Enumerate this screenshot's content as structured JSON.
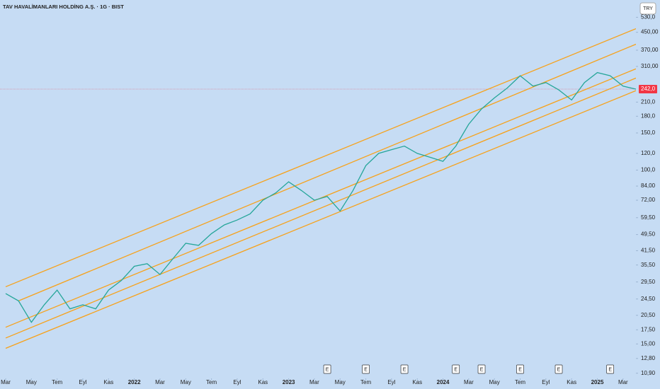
{
  "chart_data": {
    "type": "line",
    "title": "TAV HAVALİMANLARI HOLDİNG A.Ş. · 1G · BIST",
    "currency": "TRY",
    "log_scale": true,
    "x": [
      "2021-03",
      "2021-04",
      "2021-05",
      "2021-06",
      "2021-07",
      "2021-08",
      "2021-09",
      "2021-10",
      "2021-11",
      "2021-12",
      "2022-01",
      "2022-02",
      "2022-03",
      "2022-04",
      "2022-05",
      "2022-06",
      "2022-07",
      "2022-08",
      "2022-09",
      "2022-10",
      "2022-11",
      "2022-12",
      "2023-01",
      "2023-02",
      "2023-03",
      "2023-04",
      "2023-05",
      "2023-06",
      "2023-07",
      "2023-08",
      "2023-09",
      "2023-10",
      "2023-11",
      "2023-12",
      "2024-01",
      "2024-02",
      "2024-03",
      "2024-04",
      "2024-05",
      "2024-06",
      "2024-07",
      "2024-08",
      "2024-09",
      "2024-10",
      "2024-11",
      "2024-12",
      "2025-01",
      "2025-02",
      "2025-03",
      "2025-04"
    ],
    "series": [
      {
        "color": "#26a69a",
        "values": [
          26,
          24,
          19,
          23,
          27,
          22,
          23,
          22,
          27,
          30,
          35,
          36,
          32,
          38,
          45,
          44,
          50,
          55,
          58,
          62,
          72,
          78,
          88,
          80,
          72,
          75,
          64,
          80,
          105,
          120,
          125,
          130,
          120,
          115,
          110,
          130,
          165,
          195,
          220,
          245,
          280,
          250,
          260,
          240,
          215,
          260,
          290,
          280,
          250,
          242
        ]
      }
    ],
    "xlim": [
      "2021-03",
      "2025-04"
    ],
    "xticks": [
      {
        "value": "2021-03",
        "label": "Mar"
      },
      {
        "value": "2021-05",
        "label": "May"
      },
      {
        "value": "2021-07",
        "label": "Tem"
      },
      {
        "value": "2021-09",
        "label": "Eyl"
      },
      {
        "value": "2021-11",
        "label": "Kas"
      },
      {
        "value": "2022-01",
        "label": "2022"
      },
      {
        "value": "2022-03",
        "label": "Mar"
      },
      {
        "value": "2022-05",
        "label": "May"
      },
      {
        "value": "2022-07",
        "label": "Tem"
      },
      {
        "value": "2022-09",
        "label": "Eyl"
      },
      {
        "value": "2022-11",
        "label": "Kas"
      },
      {
        "value": "2023-01",
        "label": "2023"
      },
      {
        "value": "2023-03",
        "label": "Mar"
      },
      {
        "value": "2023-05",
        "label": "May"
      },
      {
        "value": "2023-07",
        "label": "Tem"
      },
      {
        "value": "2023-09",
        "label": "Eyl"
      },
      {
        "value": "2023-11",
        "label": "Kas"
      },
      {
        "value": "2024-01",
        "label": "2024"
      },
      {
        "value": "2024-03",
        "label": "Mar"
      },
      {
        "value": "2024-05",
        "label": "May"
      },
      {
        "value": "2024-07",
        "label": "Tem"
      },
      {
        "value": "2024-09",
        "label": "Eyl"
      },
      {
        "value": "2024-11",
        "label": "Kas"
      },
      {
        "value": "2025-01",
        "label": "2025"
      },
      {
        "value": "2025-03",
        "label": "Mar"
      }
    ],
    "ylim": [
      10.3,
      640
    ],
    "yticks": [
      {
        "value": 10.9,
        "label": "10,90"
      },
      {
        "value": 12.8,
        "label": "12,80"
      },
      {
        "value": 15,
        "label": "15,00"
      },
      {
        "value": 17.5,
        "label": "17,50"
      },
      {
        "value": 20.5,
        "label": "20,50"
      },
      {
        "value": 24.5,
        "label": "24,50"
      },
      {
        "value": 29.5,
        "label": "29,50"
      },
      {
        "value": 35.5,
        "label": "35,50"
      },
      {
        "value": 41.5,
        "label": "41,50"
      },
      {
        "value": 49.5,
        "label": "49,50"
      },
      {
        "value": 59.5,
        "label": "59,50"
      },
      {
        "value": 72,
        "label": "72,00"
      },
      {
        "value": 84,
        "label": "84,00"
      },
      {
        "value": 100,
        "label": "100,0"
      },
      {
        "value": 120,
        "label": "120,0"
      },
      {
        "value": 150,
        "label": "150,0"
      },
      {
        "value": 180,
        "label": "180,0"
      },
      {
        "value": 210,
        "label": "210,0"
      },
      {
        "value": 310,
        "label": "310,00"
      },
      {
        "value": 370,
        "label": "370,00"
      },
      {
        "value": 450,
        "label": "450,00"
      },
      {
        "value": 530,
        "label": "530,0"
      }
    ],
    "last_price": {
      "value": 242,
      "label": "242,0",
      "color": "#f23645"
    },
    "channel_color": "#f7a21b",
    "channel_lines": [
      {
        "x": [
          "2021-03",
          "2025-04"
        ],
        "values": [
          28,
          468
        ]
      },
      {
        "x": [
          "2021-04",
          "2025-04"
        ],
        "values": [
          24,
          395
        ]
      },
      {
        "x": [
          "2021-03",
          "2025-04"
        ],
        "values": [
          18,
          302
        ]
      },
      {
        "x": [
          "2021-03",
          "2025-04"
        ],
        "values": [
          16,
          273
        ]
      },
      {
        "x": [
          "2021-03",
          "2025-04"
        ],
        "values": [
          14.3,
          238
        ]
      }
    ],
    "earnings": {
      "label": "E",
      "x": [
        "2023-04",
        "2023-07",
        "2023-10",
        "2024-02",
        "2024-04",
        "2024-07",
        "2024-10",
        "2025-02"
      ]
    }
  }
}
